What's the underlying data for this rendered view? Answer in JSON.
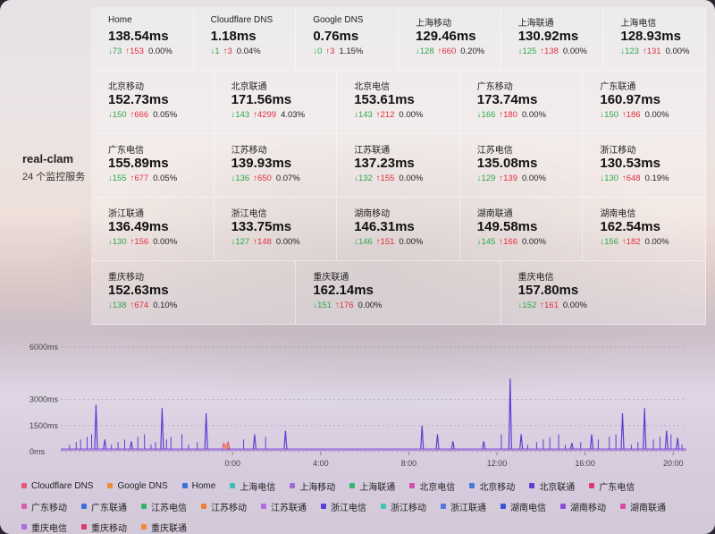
{
  "server": {
    "name": "real-clam",
    "subtitle": "24 个监控服务"
  },
  "rows": [
    [
      {
        "name": "Home",
        "latency": "138.54ms",
        "down": "↓73",
        "up": "↑153",
        "loss": "0.00%"
      },
      {
        "name": "Cloudflare DNS",
        "latency": "1.18ms",
        "down": "↓1",
        "up": "↑3",
        "loss": "0.04%"
      },
      {
        "name": "Google DNS",
        "latency": "0.76ms",
        "down": "↓0",
        "up": "↑3",
        "loss": "1.15%"
      },
      {
        "name": "上海移动",
        "latency": "129.46ms",
        "down": "↓128",
        "up": "↑660",
        "loss": "0.20%"
      },
      {
        "name": "上海联通",
        "latency": "130.92ms",
        "down": "↓125",
        "up": "↑138",
        "loss": "0.00%"
      },
      {
        "name": "上海电信",
        "latency": "128.93ms",
        "down": "↓123",
        "up": "↑131",
        "loss": "0.00%"
      }
    ],
    [
      {
        "name": "北京移动",
        "latency": "152.73ms",
        "down": "↓150",
        "up": "↑666",
        "loss": "0.05%"
      },
      {
        "name": "北京联通",
        "latency": "171.56ms",
        "down": "↓143",
        "up": "↑4299",
        "loss": "4.03%"
      },
      {
        "name": "北京电信",
        "latency": "153.61ms",
        "down": "↓143",
        "up": "↑212",
        "loss": "0.00%"
      },
      {
        "name": "广东移动",
        "latency": "173.74ms",
        "down": "↓166",
        "up": "↑180",
        "loss": "0.00%"
      },
      {
        "name": "广东联通",
        "latency": "160.97ms",
        "down": "↓150",
        "up": "↑186",
        "loss": "0.00%"
      }
    ],
    [
      {
        "name": "广东电信",
        "latency": "155.89ms",
        "down": "↓155",
        "up": "↑677",
        "loss": "0.05%"
      },
      {
        "name": "江苏移动",
        "latency": "139.93ms",
        "down": "↓136",
        "up": "↑650",
        "loss": "0.07%"
      },
      {
        "name": "江苏联通",
        "latency": "137.23ms",
        "down": "↓132",
        "up": "↑155",
        "loss": "0.00%"
      },
      {
        "name": "江苏电信",
        "latency": "135.08ms",
        "down": "↓129",
        "up": "↑139",
        "loss": "0.00%"
      },
      {
        "name": "浙江移动",
        "latency": "130.53ms",
        "down": "↓130",
        "up": "↑648",
        "loss": "0.19%"
      }
    ],
    [
      {
        "name": "浙江联通",
        "latency": "136.49ms",
        "down": "↓130",
        "up": "↑156",
        "loss": "0.00%"
      },
      {
        "name": "浙江电信",
        "latency": "133.75ms",
        "down": "↓127",
        "up": "↑148",
        "loss": "0.00%"
      },
      {
        "name": "湖南移动",
        "latency": "146.31ms",
        "down": "↓146",
        "up": "↑151",
        "loss": "0.00%"
      },
      {
        "name": "湖南联通",
        "latency": "149.58ms",
        "down": "↓145",
        "up": "↑166",
        "loss": "0.00%"
      },
      {
        "name": "湖南电信",
        "latency": "162.54ms",
        "down": "↓156",
        "up": "↑182",
        "loss": "0.00%"
      }
    ],
    [
      {
        "name": "重庆移动",
        "latency": "152.63ms",
        "down": "↓138",
        "up": "↑674",
        "loss": "0.10%"
      },
      {
        "name": "重庆联通",
        "latency": "162.14ms",
        "down": "↓151",
        "up": "↑176",
        "loss": "0.00%"
      },
      {
        "name": "重庆电信",
        "latency": "157.80ms",
        "down": "↓152",
        "up": "↑161",
        "loss": "0.00%"
      }
    ]
  ],
  "chart_data": {
    "type": "line",
    "yticks": [
      "6000ms",
      "3000ms",
      "1500ms",
      "0ms"
    ],
    "ylim": [
      0,
      6000
    ],
    "xticks": [
      "0:00",
      "4:00",
      "8:00",
      "12:00",
      "16:00",
      "20:00"
    ],
    "series": [
      {
        "name": "北京联通",
        "color": "#5b3fd1",
        "spikes": [
          [
            -6.2,
            2700
          ],
          [
            -5.8,
            700
          ],
          [
            -4.6,
            600
          ],
          [
            -3.2,
            2500
          ],
          [
            -1.2,
            2200
          ],
          [
            -0.2,
            200
          ],
          [
            1.0,
            1000
          ],
          [
            2.4,
            1200
          ],
          [
            8.6,
            1500
          ],
          [
            9.3,
            1000
          ],
          [
            10.0,
            600
          ],
          [
            11.4,
            600
          ],
          [
            12.6,
            4200
          ],
          [
            13.1,
            1000
          ],
          [
            15.4,
            500
          ],
          [
            16.3,
            1000
          ],
          [
            17.7,
            2200
          ],
          [
            18.7,
            2500
          ],
          [
            19.7,
            1200
          ],
          [
            20.2,
            800
          ]
        ]
      },
      {
        "name": "Cloudflare DNS",
        "color": "#e4577a",
        "spikes": [
          [
            -0.4,
            500
          ],
          [
            -0.2,
            600
          ]
        ]
      },
      {
        "name": "Google DNS",
        "color": "#f08c3a",
        "spikes": [
          [
            -0.3,
            400
          ]
        ]
      }
    ],
    "baseline_ms": 150
  },
  "legend": [
    {
      "label": "Cloudflare DNS",
      "color": "#e4577a"
    },
    {
      "label": "Google DNS",
      "color": "#f08c3a"
    },
    {
      "label": "Home",
      "color": "#3f6fd8"
    },
    {
      "label": "上海电信",
      "color": "#3cbfb4"
    },
    {
      "label": "上海移动",
      "color": "#a26ad8"
    },
    {
      "label": "上海联通",
      "color": "#2fb574"
    },
    {
      "label": "北京电信",
      "color": "#d44fb0"
    },
    {
      "label": "北京移动",
      "color": "#4a78d8"
    },
    {
      "label": "北京联通",
      "color": "#5b3fd1"
    },
    {
      "label": "广东电信",
      "color": "#e0386a"
    },
    {
      "label": "广东移动",
      "color": "#d95fa5"
    },
    {
      "label": "广东联通",
      "color": "#3d6fe0"
    },
    {
      "label": "江苏电信",
      "color": "#2fb56a"
    },
    {
      "label": "江苏移动",
      "color": "#ef7f3a"
    },
    {
      "label": "江苏联通",
      "color": "#b46ae0"
    },
    {
      "label": "浙江电信",
      "color": "#5a3fd6"
    },
    {
      "label": "浙江移动",
      "color": "#3ccab8"
    },
    {
      "label": "浙江联通",
      "color": "#4f7be0"
    },
    {
      "label": "湖南电信",
      "color": "#3a52d0"
    },
    {
      "label": "湖南移动",
      "color": "#8a4fd8"
    },
    {
      "label": "湖南联通",
      "color": "#d24f9e"
    },
    {
      "label": "重庆电信",
      "color": "#b06ae0"
    },
    {
      "label": "重庆移动",
      "color": "#e0386a"
    },
    {
      "label": "重庆联通",
      "color": "#ee8a3a"
    }
  ]
}
